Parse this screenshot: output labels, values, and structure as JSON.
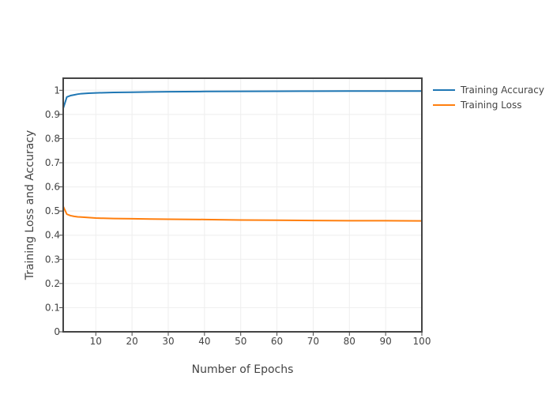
{
  "chart_data": {
    "type": "line",
    "title": "",
    "xlabel": "Number of Epochs",
    "ylabel": "Training Loss and Accuracy",
    "xlim": [
      1,
      100
    ],
    "ylim": [
      0,
      1.05
    ],
    "xticks": [
      10,
      20,
      30,
      40,
      50,
      60,
      70,
      80,
      90,
      100
    ],
    "yticks": [
      0,
      0.1,
      0.2,
      0.3,
      0.4,
      0.5,
      0.6,
      0.7,
      0.8,
      0.9,
      1
    ],
    "grid": true,
    "legend_position": "top-right-outside",
    "series": [
      {
        "name": "Training Accuracy",
        "color": "#1f77b4",
        "x": [
          1,
          2,
          3,
          4,
          5,
          6,
          8,
          10,
          12,
          15,
          20,
          25,
          30,
          40,
          50,
          60,
          70,
          80,
          90,
          100
        ],
        "y": [
          0.925,
          0.972,
          0.978,
          0.981,
          0.984,
          0.986,
          0.988,
          0.989,
          0.99,
          0.991,
          0.992,
          0.993,
          0.994,
          0.995,
          0.9955,
          0.996,
          0.9965,
          0.997,
          0.997,
          0.997
        ]
      },
      {
        "name": "Training Loss",
        "color": "#ff7f0e",
        "x": [
          1,
          2,
          3,
          4,
          5,
          6,
          8,
          10,
          12,
          15,
          20,
          25,
          30,
          40,
          50,
          60,
          70,
          80,
          90,
          100
        ],
        "y": [
          0.519,
          0.487,
          0.481,
          0.478,
          0.476,
          0.475,
          0.473,
          0.471,
          0.47,
          0.469,
          0.468,
          0.467,
          0.466,
          0.465,
          0.463,
          0.462,
          0.461,
          0.46,
          0.46,
          0.459
        ]
      }
    ]
  }
}
